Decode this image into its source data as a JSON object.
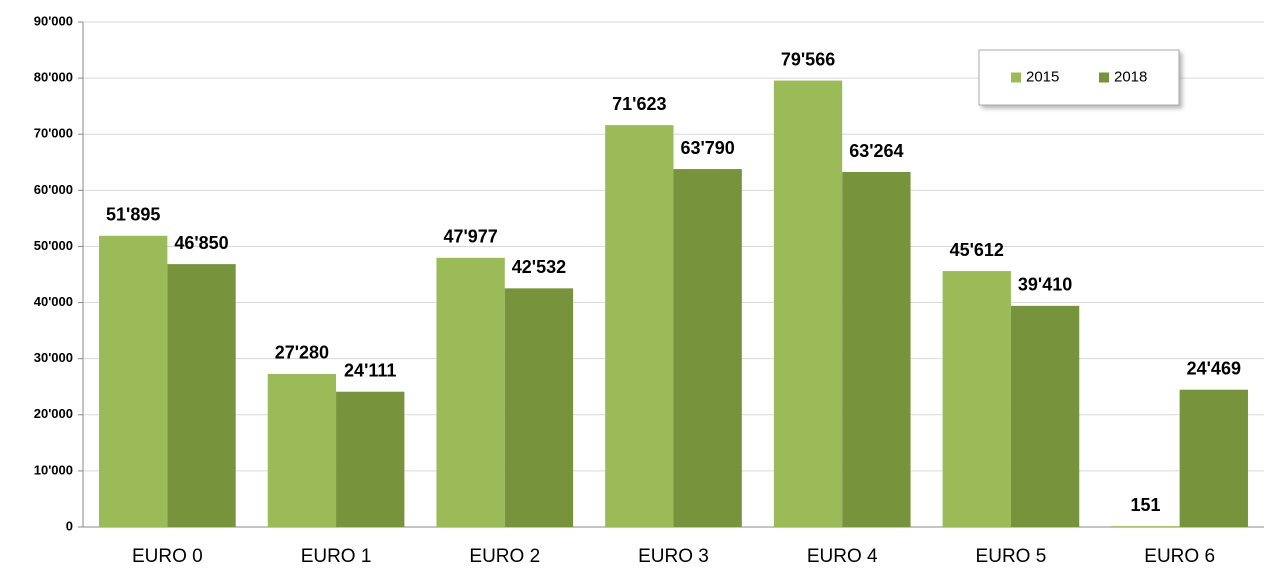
{
  "chart_data": {
    "type": "bar",
    "categories": [
      "EURO 0",
      "EURO 1",
      "EURO 2",
      "EURO 3",
      "EURO 4",
      "EURO 5",
      "EURO 6"
    ],
    "series": [
      {
        "name": "2015",
        "color": "#9bbb59",
        "values": [
          51895,
          27280,
          47977,
          71623,
          79566,
          45612,
          151
        ],
        "value_labels": [
          "51'895",
          "27'280",
          "47'977",
          "71'623",
          "79'566",
          "45'612",
          "151"
        ]
      },
      {
        "name": "2018",
        "color": "#77933c",
        "values": [
          46850,
          24111,
          42532,
          63790,
          63264,
          39410,
          24469
        ],
        "value_labels": [
          "46'850",
          "24'111",
          "42'532",
          "63'790",
          "63'264",
          "39'410",
          "24'469"
        ]
      }
    ],
    "ylim": [
      0,
      90000
    ],
    "yticks": [
      0,
      {
        "value": 10000,
        "label": "10'000"
      },
      {
        "value": 20000,
        "label": "20'000"
      },
      {
        "value": 30000,
        "label": "30'000"
      },
      {
        "value": 40000,
        "label": "40'000"
      },
      {
        "value": 50000,
        "label": "50'000"
      },
      {
        "value": 60000,
        "label": "60'000"
      },
      {
        "value": 70000,
        "label": "70'000"
      },
      {
        "value": 80000,
        "label": "80'000"
      },
      {
        "value": 90000,
        "label": "90'000"
      }
    ],
    "grid": true,
    "legend": "upper right"
  }
}
